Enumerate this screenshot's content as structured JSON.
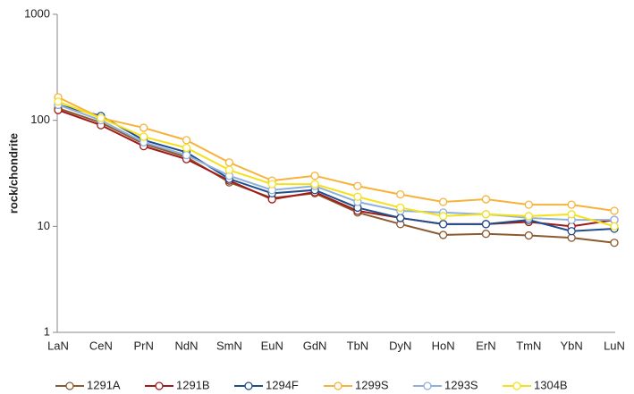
{
  "chart_data": {
    "type": "line",
    "y_label": "rock/chondrite",
    "log_y": true,
    "legend": "bottom",
    "categories": [
      "LaN",
      "CeN",
      "PrN",
      "NdN",
      "SmN",
      "EuN",
      "GdN",
      "TbN",
      "DyN",
      "HoN",
      "ErN",
      "TmN",
      "YbN",
      "LuN"
    ],
    "ylim": [
      1,
      1000
    ],
    "yticks": [
      1,
      10,
      100,
      1000
    ],
    "series": [
      {
        "name": "1291A",
        "color": "#8c5a2e",
        "values": [
          130,
          95,
          60,
          45,
          26,
          18.5,
          20.5,
          13.5,
          10.5,
          8.3,
          8.5,
          8.2,
          7.8,
          7.0
        ]
      },
      {
        "name": "1291B",
        "color": "#a01a1a",
        "values": [
          125,
          90,
          57,
          43,
          27,
          18,
          21,
          14,
          12,
          10.5,
          10.5,
          11,
          10,
          11.5
        ]
      },
      {
        "name": "1294F",
        "color": "#1f4e8c",
        "values": [
          140,
          110,
          65,
          50,
          28,
          20.5,
          22,
          15,
          12,
          10.5,
          10.5,
          11.5,
          9,
          9.5
        ]
      },
      {
        "name": "1299S",
        "color": "#f7b239",
        "values": [
          165,
          105,
          85,
          65,
          40,
          27,
          30,
          24,
          20,
          17,
          18,
          16,
          16,
          14
        ]
      },
      {
        "name": "1293S",
        "color": "#8fb0dc",
        "values": [
          140,
          100,
          62,
          47,
          30,
          22,
          24,
          17,
          14,
          13.5,
          13,
          12,
          11.5,
          11.5
        ]
      },
      {
        "name": "1304B",
        "color": "#f5e11a",
        "values": [
          150,
          105,
          70,
          55,
          34,
          25,
          25,
          19,
          15,
          12.5,
          13,
          12.5,
          13,
          10
        ]
      }
    ]
  }
}
